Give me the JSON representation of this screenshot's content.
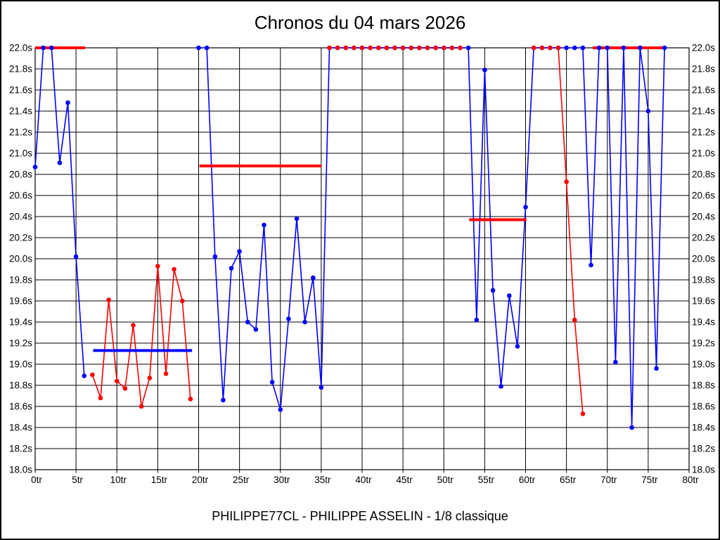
{
  "title": "Chronos du 04 mars 2026",
  "footer": "PHILIPPE77CL - PHILIPPE ASSELIN - 1/8 classique",
  "chart_data": {
    "type": "line",
    "title": "Chronos du 04 mars 2026",
    "xlabel": "",
    "ylabel": "",
    "x_unit": "tr",
    "y_unit": "s",
    "xlim": [
      0,
      80
    ],
    "ylim": [
      18.0,
      22.0
    ],
    "grid": true,
    "x_tick_labels": [
      "0tr",
      "5tr",
      "10tr",
      "15tr",
      "20tr",
      "25tr",
      "30tr",
      "35tr",
      "40tr",
      "45tr",
      "50tr",
      "55tr",
      "60tr",
      "65tr",
      "70tr",
      "75tr",
      "80tr"
    ],
    "y_tick_labels": [
      "22.0s",
      "21.8s",
      "21.6s",
      "21.4s",
      "21.2s",
      "21.0s",
      "20.8s",
      "20.6s",
      "20.4s",
      "20.2s",
      "20.0s",
      "19.8s",
      "19.6s",
      "19.4s",
      "19.2s",
      "19.0s",
      "18.8s",
      "18.6s",
      "18.4s",
      "18.2s",
      "18.0s"
    ],
    "series": [
      {
        "name": "red-series",
        "color": "#ff0000",
        "segments": [
          [
            [
              7,
              18.9
            ],
            [
              8,
              18.68
            ],
            [
              9,
              19.61
            ],
            [
              10,
              18.84
            ],
            [
              11,
              18.77
            ],
            [
              12,
              19.37
            ],
            [
              13,
              18.6
            ],
            [
              14,
              18.87
            ],
            [
              15,
              19.93
            ],
            [
              16,
              18.91
            ],
            [
              17,
              19.9
            ],
            [
              18,
              19.6
            ],
            [
              19,
              18.67
            ]
          ],
          [
            [
              36,
              22
            ],
            [
              37,
              22
            ],
            [
              38,
              22
            ],
            [
              39,
              22
            ],
            [
              40,
              22
            ],
            [
              41,
              22
            ],
            [
              42,
              22
            ],
            [
              43,
              22
            ],
            [
              44,
              22
            ],
            [
              45,
              22
            ],
            [
              46,
              22
            ],
            [
              47,
              22
            ],
            [
              48,
              22
            ],
            [
              49,
              22
            ],
            [
              50,
              22
            ],
            [
              51,
              22
            ],
            [
              52,
              22
            ]
          ],
          [
            [
              61,
              22
            ],
            [
              62,
              22
            ],
            [
              63,
              22
            ],
            [
              64,
              22
            ],
            [
              65,
              20.73
            ],
            [
              66,
              19.42
            ],
            [
              67,
              18.53
            ]
          ]
        ]
      },
      {
        "name": "blue-series",
        "color": "#0000ff",
        "segments": [
          [
            [
              0,
              20.87
            ],
            [
              1,
              22
            ],
            [
              2,
              22
            ],
            [
              3,
              20.91
            ],
            [
              4,
              21.48
            ],
            [
              5,
              20.02
            ],
            [
              6,
              18.89
            ]
          ],
          [
            [
              20,
              22
            ],
            [
              21,
              22
            ],
            [
              22,
              20.02
            ],
            [
              23,
              18.66
            ],
            [
              24,
              19.91
            ],
            [
              25,
              20.07
            ],
            [
              26,
              19.4
            ],
            [
              27,
              19.33
            ],
            [
              28,
              20.32
            ],
            [
              29,
              18.83
            ],
            [
              30,
              18.57
            ],
            [
              31,
              19.43
            ],
            [
              32,
              20.38
            ],
            [
              33,
              19.4
            ],
            [
              34,
              19.82
            ],
            [
              35,
              18.78
            ],
            [
              36,
              22
            ],
            [
              37,
              22
            ],
            [
              38,
              22
            ],
            [
              39,
              22
            ],
            [
              40,
              22
            ],
            [
              41,
              22
            ],
            [
              42,
              22
            ],
            [
              43,
              22
            ],
            [
              44,
              22
            ],
            [
              45,
              22
            ],
            [
              46,
              22
            ],
            [
              47,
              22
            ],
            [
              48,
              22
            ],
            [
              49,
              22
            ],
            [
              50,
              22
            ],
            [
              51,
              22
            ],
            [
              52,
              22
            ],
            [
              53,
              22
            ],
            [
              54,
              19.42
            ],
            [
              55,
              21.79
            ],
            [
              56,
              19.7
            ],
            [
              57,
              18.79
            ],
            [
              58,
              19.65
            ],
            [
              59,
              19.17
            ],
            [
              60,
              20.49
            ],
            [
              61,
              22
            ],
            [
              62,
              22
            ],
            [
              63,
              22
            ],
            [
              64,
              22
            ],
            [
              65,
              22
            ],
            [
              66,
              22
            ],
            [
              67,
              22
            ],
            [
              68,
              19.94
            ],
            [
              69,
              22
            ],
            [
              70,
              22
            ],
            [
              71,
              19.02
            ],
            [
              72,
              22
            ],
            [
              73,
              18.4
            ],
            [
              74,
              22
            ],
            [
              75,
              21.4
            ],
            [
              76,
              18.96
            ],
            [
              77,
              22
            ]
          ]
        ]
      }
    ],
    "mean_lines": [
      {
        "color": "#ff0000",
        "value": 22.0,
        "from": 0.0,
        "to": 6.1
      },
      {
        "color": "#0000ff",
        "value": 19.13,
        "from": 7.1,
        "to": 19.2
      },
      {
        "color": "#ff0000",
        "value": 20.88,
        "from": 20.1,
        "to": 35.0
      },
      {
        "color": "#ff0000",
        "value": 20.37,
        "from": 53.1,
        "to": 60.1
      },
      {
        "color": "#ff0000",
        "value": 22.0,
        "from": 68.2,
        "to": 77.0
      }
    ]
  }
}
